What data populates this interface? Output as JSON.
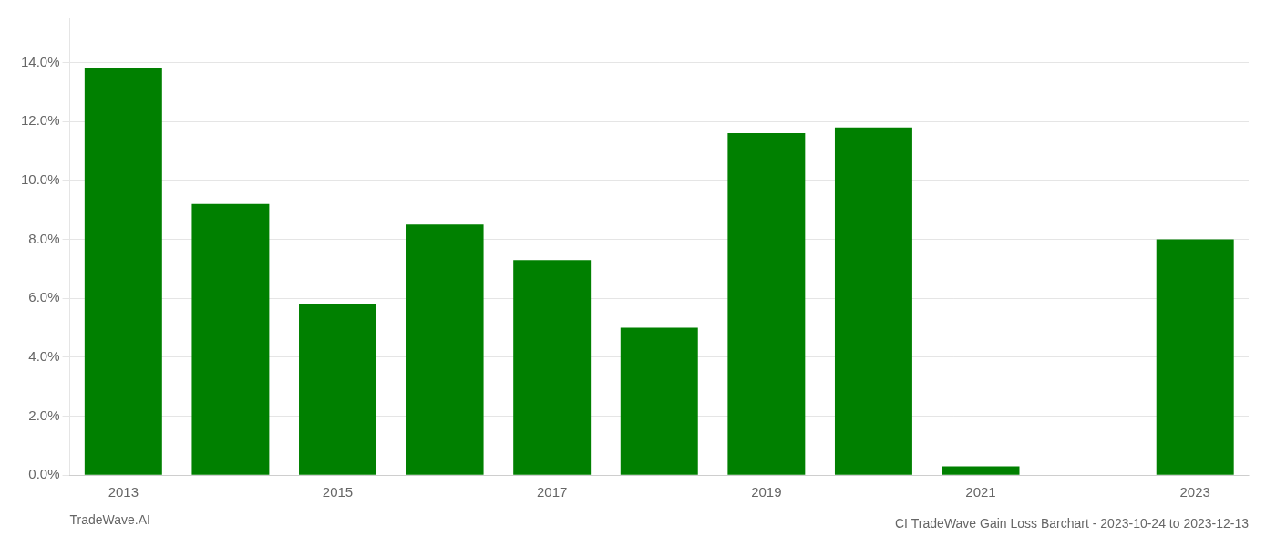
{
  "chart_data": {
    "type": "bar",
    "title": "CI TradeWave Gain Loss Barchart - 2023-10-24 to 2023-12-13",
    "annotations": [
      "TradeWave.AI"
    ],
    "categories": [
      "2013",
      null,
      "2015",
      null,
      "2017",
      null,
      "2019",
      null,
      "2021",
      null,
      "2023"
    ],
    "values": [
      0.138,
      0.092,
      0.058,
      0.085,
      0.073,
      0.05,
      0.116,
      0.118,
      0.003,
      0.0,
      0.08
    ],
    "color": "#008000",
    "ylim": [
      0,
      0.155
    ],
    "yticks": [
      {
        "value": 0,
        "label": "0.0%"
      },
      {
        "value": 0.02,
        "label": "2.0%"
      },
      {
        "value": 0.04,
        "label": "4.0%"
      },
      {
        "value": 0.06,
        "label": "6.0%"
      },
      {
        "value": 0.08,
        "label": "8.0%"
      },
      {
        "value": 0.1,
        "label": "10.0%"
      },
      {
        "value": 0.12,
        "label": "12.0%"
      },
      {
        "value": 0.14,
        "label": "14.0%"
      }
    ],
    "grid": true,
    "data_labels": false
  }
}
